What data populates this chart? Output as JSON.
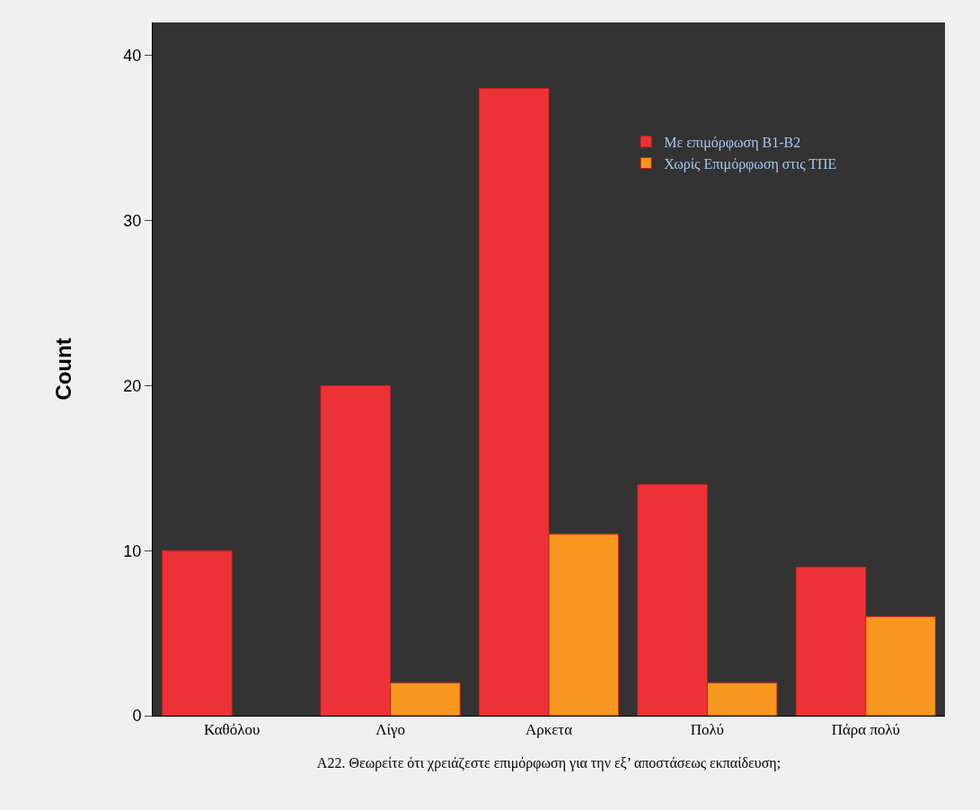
{
  "chart_data": {
    "type": "bar",
    "xlabel": "A22. Θεωρείτε ότι χρειάζεστε επιμόρφωση για την εξ’ αποστάσεως εκπαίδευση;",
    "ylabel": "Count",
    "categories": [
      "Καθόλου",
      "Λίγο",
      "Αρκετα",
      "Πολύ",
      "Πάρα πολύ"
    ],
    "series": [
      {
        "name": "Με επιμόρφωση Β1-Β2",
        "color": "#ee3338",
        "values": [
          10,
          20,
          38,
          14,
          9
        ]
      },
      {
        "name": "Χωρίς Επιμόρφωση στις ΤΠΕ",
        "color": "#f7971f",
        "values": [
          null,
          2,
          11,
          2,
          6
        ]
      }
    ],
    "ylim": [
      0,
      42
    ],
    "yticks": [
      0,
      10,
      20,
      30,
      40
    ],
    "legend": "top right"
  }
}
